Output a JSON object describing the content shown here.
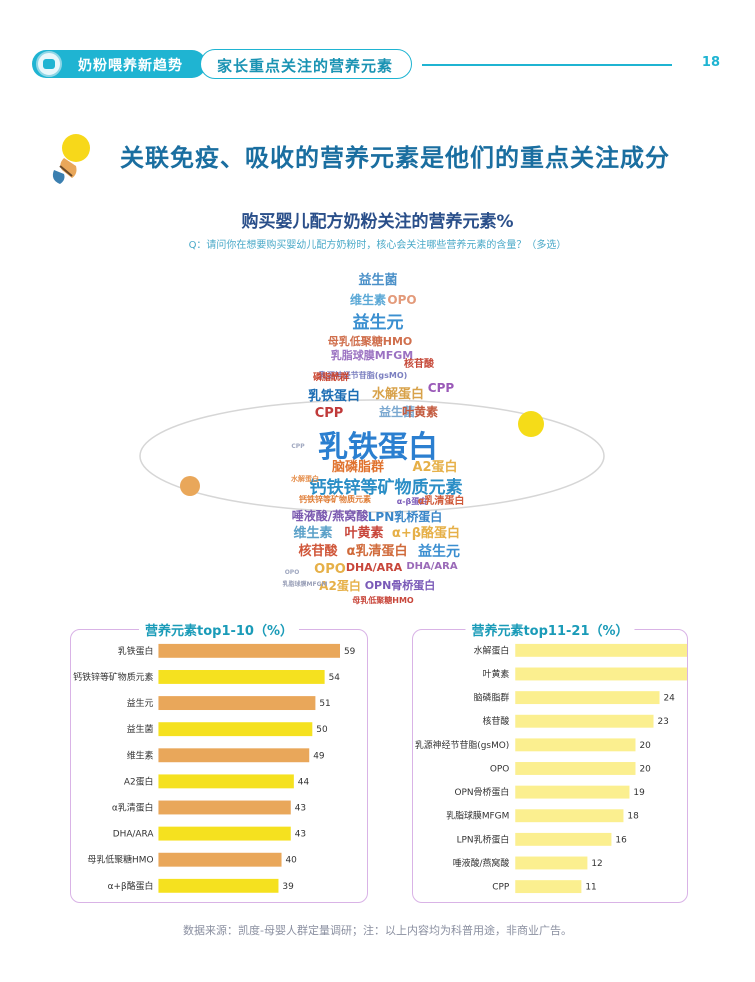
{
  "header": {
    "section_label": "奶粉喂养新趋势",
    "tab_label": "家长重点关注的营养元素",
    "page_number": "18"
  },
  "headline": "关联免疫、吸收的营养元素是他们的重点关注成分",
  "chart_title": "购买婴儿配方奶粉关注的营养元素%",
  "question": "Q：请问你在想要购买婴幼儿配方奶粉时，核心会关注哪些营养元素的含量？（多选）",
  "colors": {
    "brand_teal": "#1fb4d2",
    "headline_blue": "#1a6ea0",
    "bar_orange": "#e9a75a",
    "bar_yellow": "#f5e11f",
    "bar_light_yellow": "#fbef8f",
    "panel_border": "#d9b3e6",
    "orbit_yellow_dot": "#f5dc18",
    "orbit_orange_dot": "#e9a75a"
  },
  "word_cloud": {
    "words": [
      {
        "text": "益生菌",
        "color": "#4a90c8",
        "size": 13
      },
      {
        "text": "维生素",
        "color": "#5aa8d6",
        "size": 12
      },
      {
        "text": "OPO",
        "color": "#e39a7a",
        "size": 12
      },
      {
        "text": "益生元",
        "color": "#3a8fd0",
        "size": 17
      },
      {
        "text": "母乳低聚糖HMO",
        "color": "#d0704e",
        "size": 11
      },
      {
        "text": "乳脂球膜MFGM",
        "color": "#9b72c2",
        "size": 11
      },
      {
        "text": "核苷酸",
        "color": "#c64a3a",
        "size": 10
      },
      {
        "text": "乳源神经节苷脂(gsMO)",
        "color": "#7b7fc0",
        "size": 8
      },
      {
        "text": "磷脂酰群",
        "color": "#c9442f",
        "size": 9
      },
      {
        "text": "乳铁蛋白",
        "color": "#1c6db4",
        "size": 13
      },
      {
        "text": "水解蛋白",
        "color": "#d8a24a",
        "size": 13
      },
      {
        "text": "CPP",
        "color": "#9a5ab8",
        "size": 12
      },
      {
        "text": "CPP",
        "color": "#c03a3a",
        "size": 13
      },
      {
        "text": "益生菌",
        "color": "#7aa8d0",
        "size": 12
      },
      {
        "text": "叶黄素",
        "color": "#c35a3e",
        "size": 12
      },
      {
        "text": "乳铁蛋白",
        "color": "#2b7fd0",
        "size": 30
      },
      {
        "text": "脑磷脂群",
        "color": "#e0722e",
        "size": 13
      },
      {
        "text": "A2蛋白",
        "color": "#e6b048",
        "size": 13
      },
      {
        "text": "钙铁锌等矿物质元素",
        "color": "#2a8ec6",
        "size": 17
      },
      {
        "text": "钙铁锌等矿物质元素",
        "color": "#e07d36",
        "size": 8
      },
      {
        "text": "α-β蛋白",
        "color": "#7a5ab8",
        "size": 8
      },
      {
        "text": "α乳清蛋白",
        "color": "#d05a3a",
        "size": 10
      },
      {
        "text": "唾液酸/燕窝酸",
        "color": "#7b5ab0",
        "size": 12
      },
      {
        "text": "LPN乳桥蛋白",
        "color": "#3a86c8",
        "size": 12
      },
      {
        "text": "维生素",
        "color": "#5aa0c8",
        "size": 13
      },
      {
        "text": "叶黄素",
        "color": "#c8463a",
        "size": 13
      },
      {
        "text": "α+β酪蛋白",
        "color": "#e6b048",
        "size": 13
      },
      {
        "text": "核苷酸",
        "color": "#d0573a",
        "size": 13
      },
      {
        "text": "α乳清蛋白",
        "color": "#d06a3a",
        "size": 13
      },
      {
        "text": "益生元",
        "color": "#3a8ed0",
        "size": 14
      },
      {
        "text": "OPO",
        "color": "#e6b048",
        "size": 13
      },
      {
        "text": "DHA/ARA",
        "color": "#c8463a",
        "size": 11
      },
      {
        "text": "DHA/ARA",
        "color": "#9a6ab8",
        "size": 10
      },
      {
        "text": "A2蛋白",
        "color": "#e6b048",
        "size": 12
      },
      {
        "text": "OPN骨桥蛋白",
        "color": "#7a5ab8",
        "size": 11
      },
      {
        "text": "母乳低聚糖HMO",
        "color": "#c8463a",
        "size": 8
      },
      {
        "text": "OPO",
        "color": "#a0a8c0",
        "size": 6
      },
      {
        "text": "CPP",
        "color": "#a0a8c0",
        "size": 6
      },
      {
        "text": "水解蛋白",
        "color": "#e6904e",
        "size": 7
      },
      {
        "text": "乳脂球膜MFGM",
        "color": "#9aa0b8",
        "size": 6
      }
    ]
  },
  "chart_data": [
    {
      "type": "bar",
      "orientation": "horizontal",
      "title": "营养元素top1-10（%）",
      "categories": [
        "乳铁蛋白",
        "钙铁锌等矿物质元素",
        "益生元",
        "益生菌",
        "维生素",
        "A2蛋白",
        "α乳清蛋白",
        "DHA/ARA",
        "母乳低聚糖HMO",
        "α+β酪蛋白"
      ],
      "values": [
        59,
        54,
        51,
        50,
        49,
        44,
        43,
        43,
        40,
        39
      ],
      "colors": [
        "#e9a75a",
        "#f5e11f",
        "#e9a75a",
        "#f5e11f",
        "#e9a75a",
        "#f5e11f",
        "#e9a75a",
        "#f5e11f",
        "#e9a75a",
        "#f5e11f"
      ],
      "xlim": [
        0,
        60
      ]
    },
    {
      "type": "bar",
      "orientation": "horizontal",
      "title": "营养元素top11-21（%）",
      "categories": [
        "水解蛋白",
        "叶黄素",
        "脑磷脂群",
        "核苷酸",
        "乳源神经节苷脂(gsMO)",
        "OPO",
        "OPN骨桥蛋白",
        "乳脂球膜MFGM",
        "LPN乳桥蛋白",
        "唾液酸/燕窝酸",
        "CPP"
      ],
      "values": [
        35,
        35,
        24,
        23,
        20,
        20,
        19,
        18,
        16,
        12,
        11
      ],
      "colors": [
        "#fbef8f",
        "#fbef8f",
        "#fbef8f",
        "#fbef8f",
        "#fbef8f",
        "#fbef8f",
        "#fbef8f",
        "#fbef8f",
        "#fbef8f",
        "#fbef8f",
        "#fbef8f"
      ],
      "xlim": [
        0,
        36
      ]
    }
  ],
  "footer": "数据来源：凯度-母婴人群定量调研；注：以上内容均为科普用途，非商业广告。"
}
